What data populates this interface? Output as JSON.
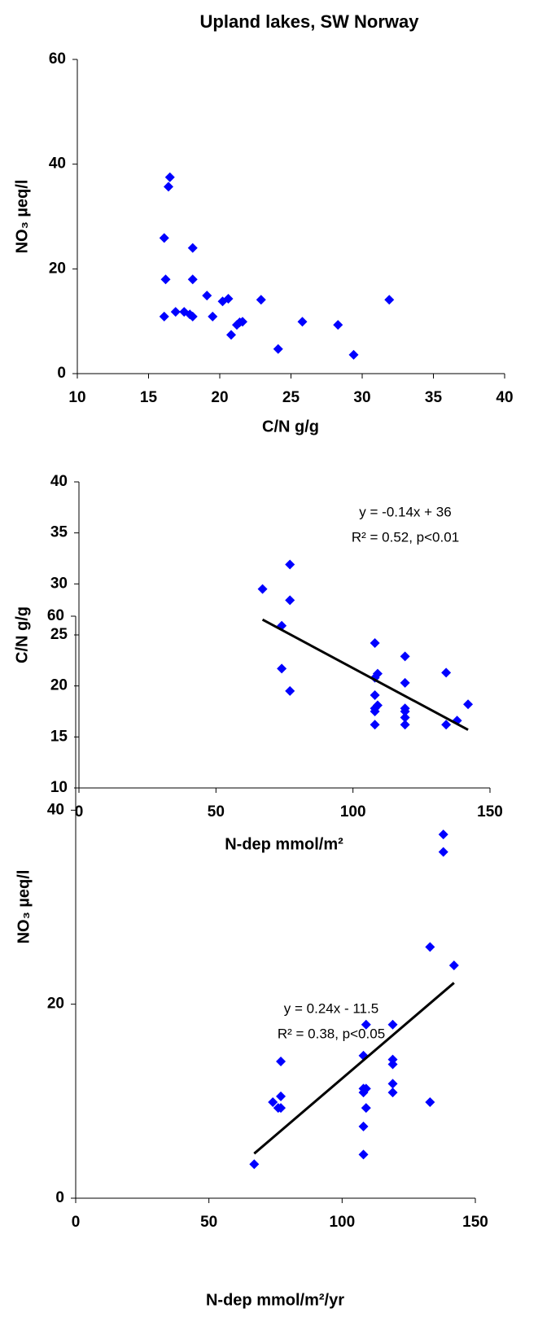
{
  "chart_data": [
    {
      "type": "scatter",
      "title": "Upland lakes, SW Norway",
      "x_label": "C/N g/g",
      "y_label": "NO₃ µeq/l",
      "xlim": [
        10,
        40
      ],
      "xticks": [
        10,
        15,
        20,
        25,
        30,
        35,
        40
      ],
      "ylim": [
        0,
        60
      ],
      "yticks": [
        0,
        20,
        40,
        60
      ],
      "color": "#0000ff",
      "x": [
        16.5,
        16.4,
        16.1,
        16.2,
        18.1,
        18.1,
        16.1,
        16.9,
        17.5,
        17.9,
        18.1,
        19.1,
        19.5,
        20.2,
        20.6,
        20.8,
        21.2,
        21.4,
        21.6,
        22.9,
        24.1,
        25.8,
        28.3,
        29.4,
        31.9
      ],
      "values": [
        37.5,
        35.7,
        25.9,
        18.0,
        24.0,
        18.0,
        10.9,
        11.8,
        11.8,
        11.3,
        10.9,
        14.9,
        10.9,
        13.8,
        14.3,
        7.4,
        9.3,
        9.8,
        9.9,
        14.1,
        4.7,
        9.9,
        9.3,
        3.6,
        14.1
      ]
    },
    {
      "type": "scatter",
      "x_label": "N-dep mmol/m²",
      "y_label": "C/N g/g",
      "xlim": [
        0,
        150
      ],
      "xticks": [
        0,
        50,
        100,
        150
      ],
      "ylim": [
        10,
        40
      ],
      "yticks": [
        10,
        15,
        20,
        25,
        30,
        35,
        40
      ],
      "color": "#0000ff",
      "x": [
        67,
        77,
        77,
        74,
        74,
        77,
        108,
        109,
        108,
        108,
        109,
        108,
        108,
        108,
        119,
        119,
        119,
        119,
        119,
        119,
        134,
        134,
        138,
        142
      ],
      "values": [
        29.5,
        31.9,
        28.4,
        25.9,
        21.7,
        19.5,
        24.2,
        21.2,
        20.8,
        19.1,
        18.1,
        17.8,
        17.5,
        16.2,
        22.9,
        20.3,
        17.8,
        17.5,
        16.9,
        16.2,
        21.3,
        16.2,
        16.6,
        18.2
      ],
      "trendline": {
        "x": [
          67,
          142
        ],
        "y": [
          26.5,
          15.7
        ],
        "color": "#000000"
      },
      "annotations": [
        "y = -0.14x + 36",
        "R² = 0.52, p<0.01"
      ]
    },
    {
      "type": "scatter",
      "x_label": "N-dep mmol/m²/yr",
      "y_label": "NO₃ µeq/l",
      "xlim": [
        0,
        150
      ],
      "xticks": [
        0,
        50,
        100,
        150
      ],
      "ylim": [
        0,
        60
      ],
      "yticks": [
        0,
        20,
        40,
        60
      ],
      "color": "#0000ff",
      "x": [
        67,
        74,
        76,
        77,
        77,
        77,
        108,
        108,
        108,
        108,
        108,
        109,
        109,
        109,
        119,
        119,
        119,
        119,
        119,
        133,
        133,
        138,
        138,
        142
      ],
      "values": [
        3.5,
        9.9,
        9.3,
        14.1,
        10.5,
        9.3,
        14.7,
        11.3,
        10.9,
        7.4,
        4.5,
        17.9,
        9.3,
        11.3,
        17.9,
        13.8,
        14.3,
        11.8,
        10.9,
        25.9,
        9.9,
        37.5,
        35.7,
        24.0
      ],
      "trendline": {
        "x": [
          67,
          142
        ],
        "y": [
          4.6,
          22.2
        ],
        "color": "#000000"
      },
      "annotations": [
        "y = 0.24x - 11.5",
        "R² = 0.38, p<0.05"
      ]
    }
  ]
}
